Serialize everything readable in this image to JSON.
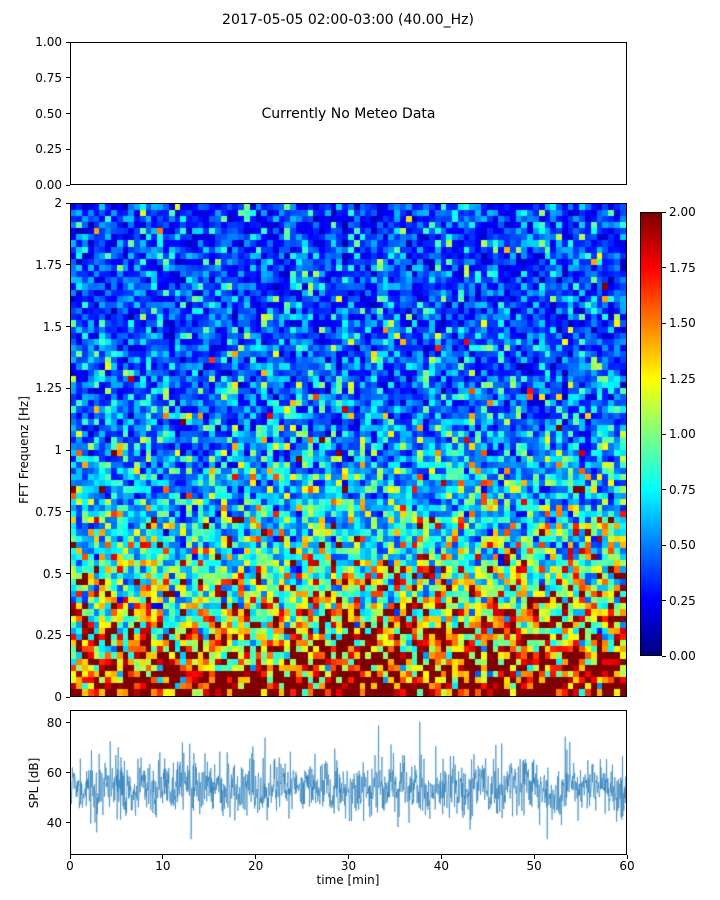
{
  "figure": {
    "title": "2017-05-05 02:00-03:00 (40.00_Hz)",
    "background": "#ffffff"
  },
  "chart_data": [
    {
      "id": "meteo",
      "type": "line",
      "annotation": "Currently No Meteo Data",
      "ylim": [
        0,
        1
      ],
      "yticks": [
        {
          "v": 1.0,
          "label": "1.00"
        },
        {
          "v": 0.75,
          "label": "0.75"
        },
        {
          "v": 0.5,
          "label": "0.50"
        },
        {
          "v": 0.25,
          "label": "0.25"
        },
        {
          "v": 0.0,
          "label": "0.00"
        }
      ],
      "series": []
    },
    {
      "id": "spectrogram",
      "type": "heatmap",
      "ylabel": "FFT Frequenz [Hz]",
      "ylim": [
        0,
        2
      ],
      "xlim": [
        0,
        60
      ],
      "yticks": [
        {
          "v": 2,
          "label": "2"
        },
        {
          "v": 1.75,
          "label": "1.75"
        },
        {
          "v": 1.5,
          "label": "1.5"
        },
        {
          "v": 1.25,
          "label": "1.25"
        },
        {
          "v": 1,
          "label": "1"
        },
        {
          "v": 0.75,
          "label": "0.75"
        },
        {
          "v": 0.5,
          "label": "0.5"
        },
        {
          "v": 0.25,
          "label": "0.25"
        },
        {
          "v": 0,
          "label": "0"
        }
      ],
      "colormap": "jet",
      "colorbar": {
        "vmin": 0,
        "vmax": 2,
        "ticks": [
          {
            "v": 2,
            "label": "2.00"
          },
          {
            "v": 1.75,
            "label": "1.75"
          },
          {
            "v": 1.5,
            "label": "1.50"
          },
          {
            "v": 1.25,
            "label": "1.25"
          },
          {
            "v": 1,
            "label": "1.00"
          },
          {
            "v": 0.75,
            "label": "0.75"
          },
          {
            "v": 0.5,
            "label": "0.50"
          },
          {
            "v": 0.25,
            "label": "0.25"
          },
          {
            "v": 0,
            "label": "0.00"
          }
        ]
      },
      "values_are_procedural": true,
      "generator": {
        "seed": 42,
        "rows": 80,
        "cols": 96,
        "base_offset": 0.33,
        "base_amp": 1.8,
        "base_decay": 0.45,
        "noise_sigma": 0.5,
        "time_trend": 0.25,
        "trend_freq_decay": 0.55
      }
    },
    {
      "id": "spl",
      "type": "line",
      "ylabel": "SPL [dB]",
      "xlabel": "time [min]",
      "xlim": [
        0,
        60
      ],
      "ylim": [
        27,
        85
      ],
      "xticks": [
        {
          "v": 0,
          "label": "0"
        },
        {
          "v": 10,
          "label": "10"
        },
        {
          "v": 20,
          "label": "20"
        },
        {
          "v": 30,
          "label": "30"
        },
        {
          "v": 40,
          "label": "40"
        },
        {
          "v": 50,
          "label": "50"
        },
        {
          "v": 60,
          "label": "60"
        }
      ],
      "yticks": [
        {
          "v": 80,
          "label": "80"
        },
        {
          "v": 60,
          "label": "60"
        },
        {
          "v": 40,
          "label": "40"
        }
      ],
      "color": "#1f77b4",
      "values_are_procedural": true,
      "generator": {
        "seed": 7,
        "n": 1600,
        "mean": 54,
        "jitter": 5,
        "drift": 1.0,
        "drift_decay": 0.9,
        "spike_p": 0.05,
        "spike_amp": 10,
        "dip_p": 0.03,
        "dip_amp": 7,
        "clip": [
          33,
          88
        ]
      }
    }
  ]
}
